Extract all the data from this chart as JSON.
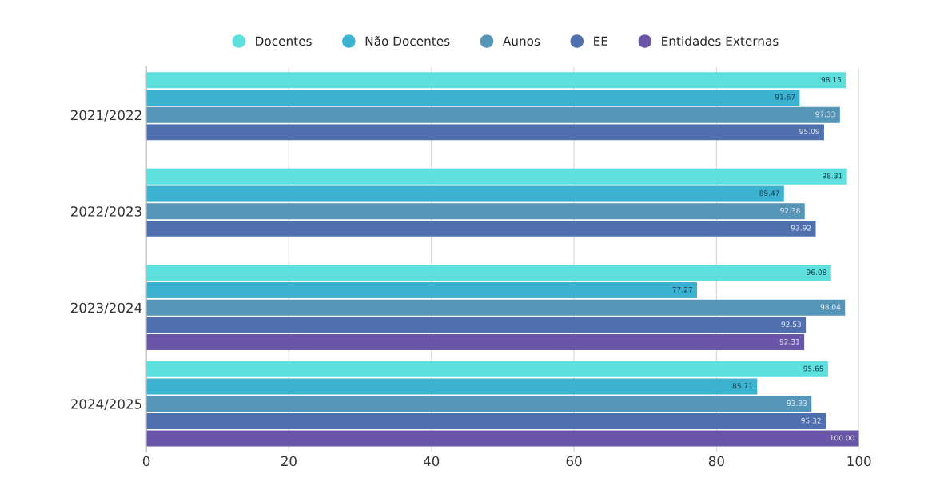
{
  "chart_data": {
    "type": "bar",
    "orientation": "horizontal",
    "categories": [
      "2021/2022",
      "2022/2023",
      "2023/2024",
      "2024/2025"
    ],
    "series": [
      {
        "name": "Docentes",
        "color": "#5ee0de",
        "values": [
          98.15,
          98.31,
          96.08,
          95.65
        ],
        "value_labels": [
          "98.15",
          "98.31",
          "96.08",
          "95.65"
        ]
      },
      {
        "name": "Não Docentes",
        "color": "#3bb3d0",
        "values": [
          91.67,
          89.47,
          77.27,
          85.71
        ],
        "value_labels": [
          "91.67",
          "89.47",
          "77.27",
          "85.71"
        ]
      },
      {
        "name": "Aunos",
        "color": "#5596b8",
        "values": [
          97.33,
          92.38,
          98.04,
          93.33
        ],
        "value_labels": [
          "97.33",
          "92.38",
          "98.04",
          "93.33"
        ]
      },
      {
        "name": "EE",
        "color": "#4f6fae",
        "values": [
          95.09,
          93.92,
          92.53,
          95.32
        ],
        "value_labels": [
          "95.09",
          "93.92",
          "92.53",
          "95.32"
        ]
      },
      {
        "name": "Entidades Externas",
        "color": "#6a56a8",
        "values": [
          null,
          null,
          92.31,
          100
        ],
        "value_labels": [
          null,
          null,
          "92.31",
          "100.00"
        ]
      }
    ],
    "xlim": [
      0,
      100
    ],
    "xticks": [
      0,
      20,
      40,
      60,
      80,
      100
    ],
    "grid": "x",
    "legend": "top"
  }
}
